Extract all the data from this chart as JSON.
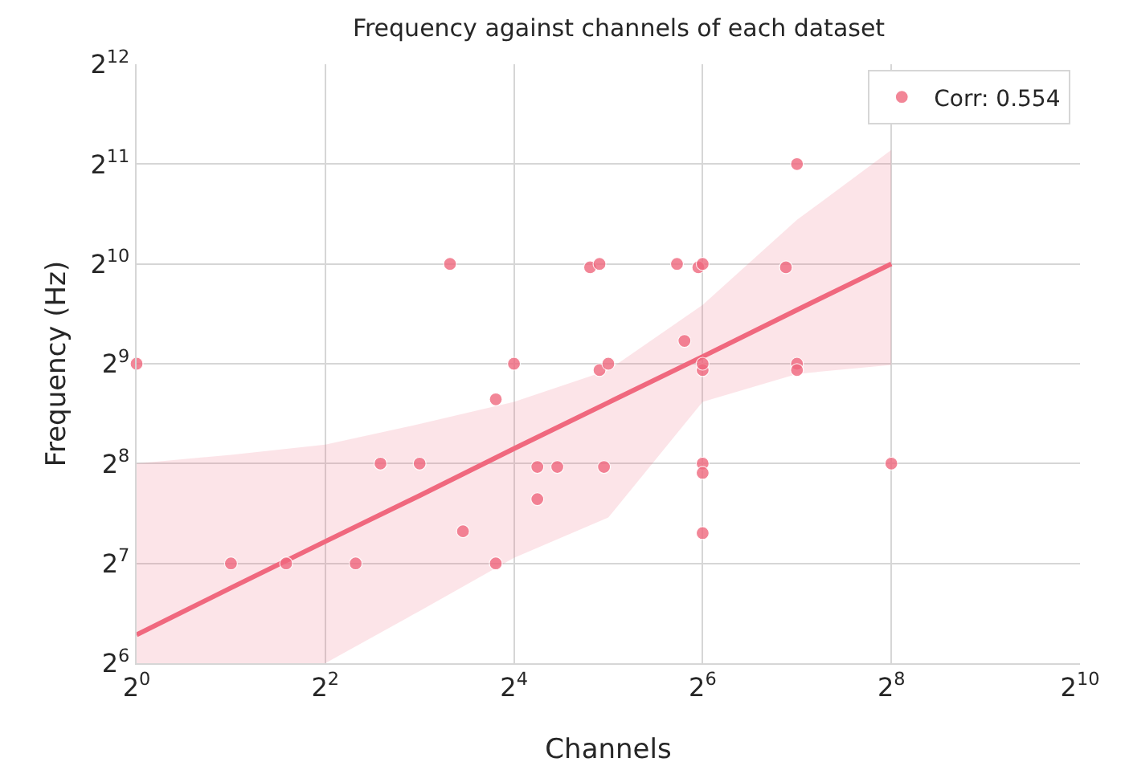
{
  "chart_data": {
    "type": "scatter",
    "title": "Frequency against channels of each dataset",
    "xlabel": "Channels",
    "ylabel": "Frequency (Hz)",
    "log": "xy",
    "grid": true,
    "legend": "top right",
    "xlim": [
      1,
      1024
    ],
    "ylim": [
      64,
      4096
    ],
    "xticks": [
      {
        "value": 1,
        "label": "2$^{0}$"
      },
      {
        "value": 4,
        "label": "2$^{2}$"
      },
      {
        "value": 16,
        "label": "2$^{4}$"
      },
      {
        "value": 64,
        "label": "2$^{6}$"
      },
      {
        "value": 256,
        "label": "2$^{8}$"
      },
      {
        "value": 1024,
        "label": "2$^{10}$"
      }
    ],
    "yticks": [
      {
        "value": 64,
        "label": "2$^{6}$"
      },
      {
        "value": 128,
        "label": "2$^{7}$"
      },
      {
        "value": 256,
        "label": "2$^{8}$"
      },
      {
        "value": 512,
        "label": "2$^{9}$"
      },
      {
        "value": 1024,
        "label": "2$^{10}$"
      },
      {
        "value": 2048,
        "label": "2$^{11}$"
      },
      {
        "value": 4096,
        "label": "2$^{12}$"
      }
    ],
    "series": [
      {
        "name": "Corr: 0.554",
        "color": "#f0687e",
        "marker": "circle",
        "x": [
          1,
          2,
          3,
          5,
          14,
          6,
          8,
          11,
          14,
          16,
          10,
          19,
          22,
          31,
          19,
          28,
          30,
          30,
          32,
          53,
          56,
          62,
          64,
          64,
          64,
          118,
          128,
          128,
          128,
          64,
          64,
          64,
          256
        ],
        "values": [
          512,
          128,
          128,
          128,
          128,
          256,
          256,
          160,
          400,
          512,
          1024,
          250,
          250,
          250,
          200,
          1000,
          1024,
          490,
          512,
          1024,
          600,
          1000,
          1024,
          490,
          512,
          1000,
          2048,
          512,
          490,
          256,
          240,
          158,
          256
        ]
      },
      {
        "type": "line",
        "marker": "none",
        "color": "#f0687e",
        "x": [
          1,
          2,
          4,
          8,
          16,
          32,
          64,
          128,
          256
        ],
        "values": [
          78,
          108,
          149,
          205,
          284,
          391,
          538,
          744,
          1024
        ],
        "lower": [
          64,
          64,
          64,
          92,
          133,
          176,
          393,
          477,
          508
        ],
        "upper": [
          256,
          272,
          292,
          337,
          393,
          490,
          770,
          1390,
          2260
        ]
      }
    ]
  }
}
